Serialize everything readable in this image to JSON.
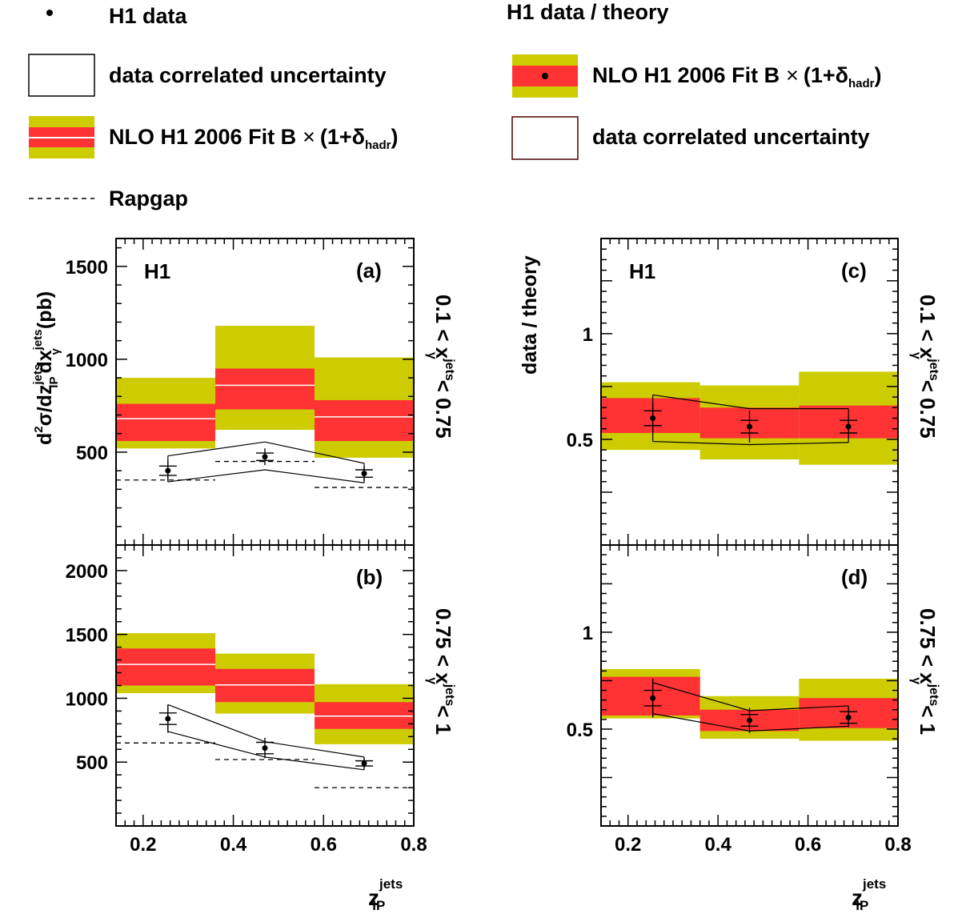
{
  "legend_left": {
    "data": "H1 data",
    "corr": "data correlated uncertainty",
    "nlo_main": "NLO H1 2006 Fit B",
    "nlo_times": "×",
    "nlo_open": "(1+δ",
    "nlo_sub": "hadr",
    "nlo_close": ")",
    "rapgap": "Rapgap"
  },
  "legend_right": {
    "title": "H1 data / theory",
    "nlo_main": "NLO H1 2006 Fit B",
    "nlo_times": "×",
    "nlo_open": "(1+δ",
    "nlo_sub": "hadr",
    "nlo_close": ")",
    "corr": "data correlated uncertainty"
  },
  "axes": {
    "ylabel_left": {
      "d2": "d",
      "two": "2",
      "sigma": "σ/dz",
      "sup1": "jets",
      "sub1": "IP",
      "dx": "dx",
      "sup2": "jets",
      "sub2": "γ",
      "unit": "(pb)"
    },
    "ylabel_right": "data / theory",
    "xlabel": {
      "z": "z",
      "sup": "jets",
      "sub": "IP"
    },
    "range_a": {
      "pre": "0.1 < x",
      "sup": "jets",
      "sub": "γ",
      "post": "< 0.75"
    },
    "range_b": {
      "pre": "0.75 < x",
      "sup": "jets",
      "sub": "γ",
      "post": "< 1"
    }
  },
  "colors": {
    "inner_band": "#ff3333",
    "outer_band": "#cccc00",
    "centre_line": "#ffffff",
    "frame": "#000000"
  },
  "chart_data": [
    {
      "id": "a",
      "label": "(a)",
      "tag": "H1",
      "type": "bar",
      "xlim": [
        0.14,
        0.8
      ],
      "ylim": [
        0,
        1650
      ],
      "yticks": [
        500,
        1000,
        1500
      ],
      "ytick_labels": [
        "500",
        "1000",
        "1500"
      ],
      "xticks": [
        0.2,
        0.4,
        0.6,
        0.8
      ],
      "xtick_labels": [],
      "bins": [
        [
          0.14,
          0.36
        ],
        [
          0.36,
          0.58
        ],
        [
          0.58,
          0.8
        ]
      ],
      "nlo": {
        "central": [
          680,
          860,
          690
        ],
        "inner_lo": [
          560,
          730,
          560
        ],
        "inner_hi": [
          760,
          950,
          780
        ],
        "outer_lo": [
          520,
          620,
          470
        ],
        "outer_hi": [
          900,
          1180,
          1010
        ]
      },
      "rapgap": [
        350,
        450,
        310
      ],
      "data": {
        "x": [
          0.255,
          0.47,
          0.69
        ],
        "y": [
          400,
          475,
          385
        ],
        "stat": [
          25,
          20,
          20
        ],
        "tot": [
          55,
          45,
          40
        ]
      },
      "corr_band": {
        "x": [
          0.255,
          0.47,
          0.69
        ],
        "lo": [
          340,
          405,
          335
        ],
        "hi": [
          480,
          555,
          440
        ]
      }
    },
    {
      "id": "b",
      "label": "(b)",
      "tag": "",
      "type": "bar",
      "xlim": [
        0.14,
        0.8
      ],
      "ylim": [
        0,
        2200
      ],
      "yticks": [
        500,
        1000,
        1500,
        2000
      ],
      "ytick_labels": [
        "500",
        "1000",
        "1500",
        "2000"
      ],
      "xticks": [
        0.2,
        0.4,
        0.6,
        0.8
      ],
      "xtick_labels": [
        "0.2",
        "0.4",
        "0.6",
        "0.8"
      ],
      "bins": [
        [
          0.14,
          0.36
        ],
        [
          0.36,
          0.58
        ],
        [
          0.58,
          0.8
        ]
      ],
      "nlo": {
        "central": [
          1265,
          1105,
          860
        ],
        "inner_lo": [
          1100,
          970,
          760
        ],
        "inner_hi": [
          1390,
          1230,
          970
        ],
        "outer_lo": [
          1040,
          880,
          640
        ],
        "outer_hi": [
          1510,
          1350,
          1110
        ]
      },
      "rapgap": [
        650,
        520,
        300
      ],
      "data": {
        "x": [
          0.255,
          0.47,
          0.69
        ],
        "y": [
          840,
          610,
          490
        ],
        "stat": [
          45,
          45,
          20
        ],
        "tot": [
          110,
          80,
          40
        ]
      },
      "corr_band": {
        "x": [
          0.255,
          0.47,
          0.69
        ],
        "lo": [
          740,
          540,
          440
        ],
        "hi": [
          950,
          660,
          540
        ]
      }
    },
    {
      "id": "c",
      "label": "(c)",
      "tag": "H1",
      "type": "bar",
      "xlim": [
        0.14,
        0.8
      ],
      "ylim": [
        0,
        1.45
      ],
      "yticks": [
        0.5,
        1
      ],
      "ytick_labels": [
        "0.5",
        "1"
      ],
      "minor_yticks": [
        0.25,
        0.75,
        1.25
      ],
      "xticks": [
        0.2,
        0.4,
        0.6,
        0.8
      ],
      "xtick_labels": [],
      "bins": [
        [
          0.14,
          0.36
        ],
        [
          0.36,
          0.58
        ],
        [
          0.58,
          0.8
        ]
      ],
      "nlo": {
        "inner_lo": [
          0.53,
          0.505,
          0.505
        ],
        "inner_hi": [
          0.695,
          0.65,
          0.66
        ],
        "outer_lo": [
          0.45,
          0.405,
          0.38
        ],
        "outer_hi": [
          0.77,
          0.755,
          0.82
        ]
      },
      "data": {
        "x": [
          0.255,
          0.47,
          0.69
        ],
        "y": [
          0.6,
          0.56,
          0.56
        ],
        "stat": [
          0.035,
          0.03,
          0.03
        ],
        "tot": [
          0.075,
          0.075,
          0.05
        ]
      },
      "corr_band": {
        "x": [
          0.255,
          0.47,
          0.69
        ],
        "lo": [
          0.49,
          0.475,
          0.485
        ],
        "hi": [
          0.71,
          0.645,
          0.645
        ]
      }
    },
    {
      "id": "d",
      "label": "(d)",
      "tag": "",
      "type": "bar",
      "xlim": [
        0.14,
        0.8
      ],
      "ylim": [
        0,
        1.45
      ],
      "yticks": [
        0.5,
        1
      ],
      "ytick_labels": [
        "0.5",
        "1"
      ],
      "minor_yticks": [
        0.25,
        0.75,
        1.25
      ],
      "xticks": [
        0.2,
        0.4,
        0.6,
        0.8
      ],
      "xtick_labels": [
        "0.2",
        "0.4",
        "0.6",
        "0.8"
      ],
      "bins": [
        [
          0.14,
          0.36
        ],
        [
          0.36,
          0.58
        ],
        [
          0.58,
          0.8
        ]
      ],
      "nlo": {
        "inner_lo": [
          0.57,
          0.49,
          0.505
        ],
        "inner_hi": [
          0.77,
          0.6,
          0.66
        ],
        "outer_lo": [
          0.555,
          0.45,
          0.44
        ],
        "outer_hi": [
          0.81,
          0.67,
          0.76
        ]
      },
      "data": {
        "x": [
          0.255,
          0.47,
          0.69
        ],
        "y": [
          0.66,
          0.545,
          0.56
        ],
        "stat": [
          0.04,
          0.03,
          0.03
        ],
        "tot": [
          0.1,
          0.065,
          0.05
        ]
      },
      "corr_band": {
        "x": [
          0.255,
          0.47,
          0.69
        ],
        "lo": [
          0.58,
          0.49,
          0.515
        ],
        "hi": [
          0.74,
          0.595,
          0.62
        ]
      }
    }
  ]
}
